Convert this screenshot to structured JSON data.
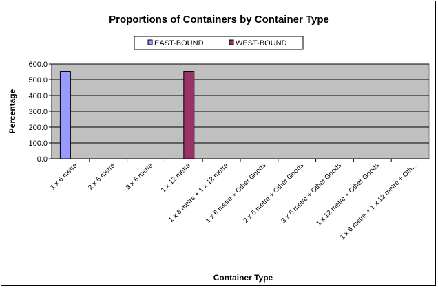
{
  "chart_data": {
    "type": "bar",
    "title": "Proportions of Containers by Container Type",
    "xlabel": "Container Type",
    "ylabel": "Percentage",
    "ylim": [
      0,
      600
    ],
    "yticks": [
      "0.0",
      "100.0",
      "200.0",
      "300.0",
      "400.0",
      "500.0",
      "600.0"
    ],
    "grid": true,
    "legend_position": "top",
    "plot_background": "#c0c0c0",
    "categories": [
      "1 x 6 metre",
      "2 x 6 metre",
      "3 x 6 metre",
      "1 x 12 metre",
      "1 x 6 metre + 1 x 12 metre",
      "1 x 6 metre + Other Goods",
      "2 x 6 metre + Other Goods",
      "3 x 6 metre + Other Goods",
      "1 x 12 metre + Other Goods",
      "1 x 6 metre + 1 x 12 metre + Oth..."
    ],
    "series": [
      {
        "name": "EAST-BOUND",
        "color": "#9999ff",
        "values": [
          550,
          0,
          0,
          0,
          0,
          0,
          0,
          0,
          0,
          0
        ]
      },
      {
        "name": "WEST-BOUND",
        "color": "#993366",
        "values": [
          0,
          0,
          0,
          550,
          0,
          0,
          0,
          0,
          0,
          0
        ]
      }
    ]
  }
}
